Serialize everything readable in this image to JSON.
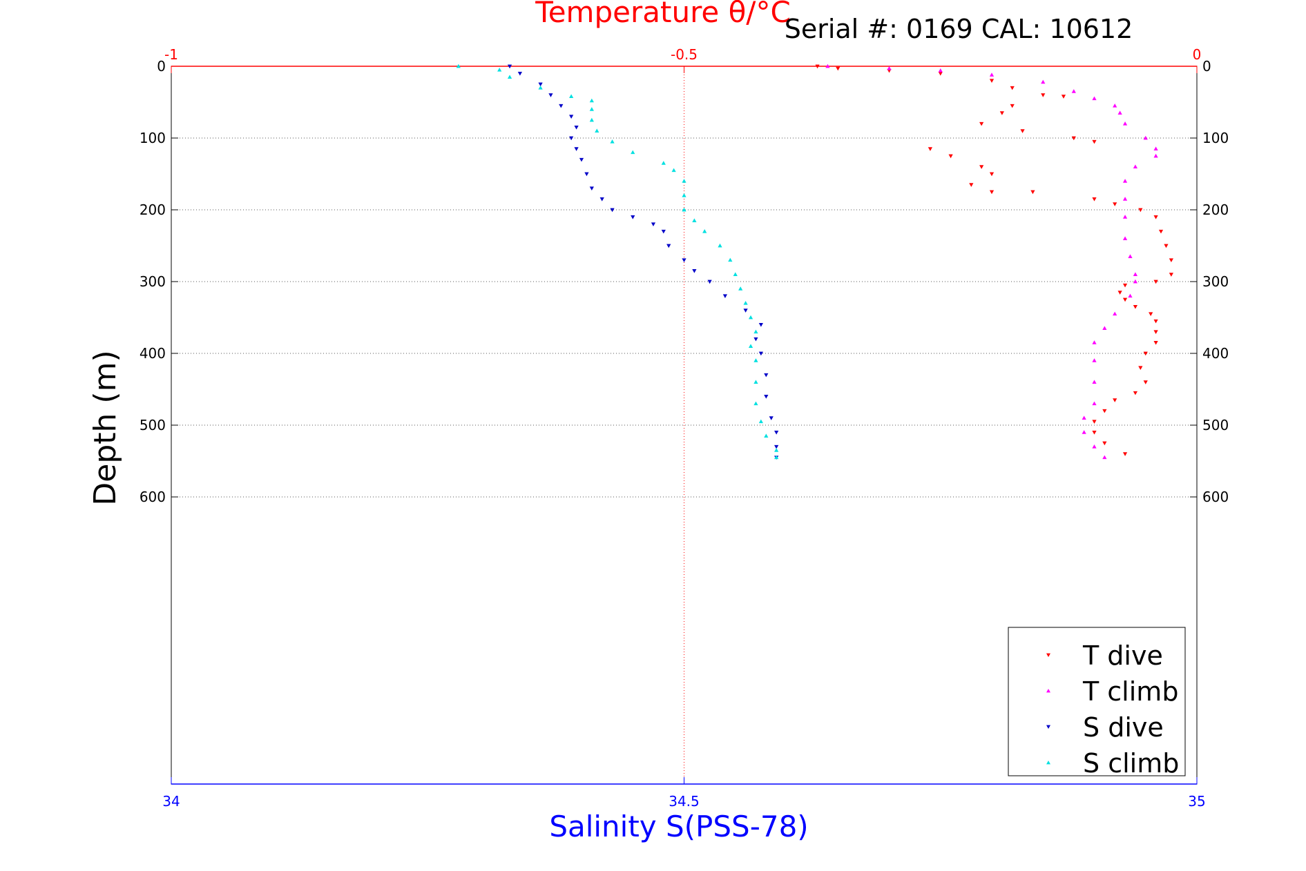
{
  "chart_data": {
    "type": "scatter",
    "title": "Temperature θ/°C",
    "subtitle": "Serial #: 0169 CAL: 10612",
    "xlabel": "Salinity S(PSS-78)",
    "ylabel": "Depth (m)",
    "x_top": {
      "label": "Temperature θ/°C",
      "range": [
        -1,
        0
      ],
      "ticks": [
        "-1",
        "-0.5",
        "0"
      ],
      "tick_values": [
        -1,
        -0.5,
        0
      ],
      "color": "#ff0000"
    },
    "x_bottom": {
      "label": "Salinity S(PSS-78)",
      "range": [
        34,
        35
      ],
      "ticks": [
        "34",
        "34.5",
        "35"
      ],
      "tick_values": [
        34,
        34.5,
        35
      ],
      "color": "#0000ff"
    },
    "y": {
      "range": [
        0,
        1000
      ],
      "reversed": true,
      "ticks": [
        "0",
        "100",
        "200",
        "300",
        "400",
        "500",
        "600"
      ],
      "tick_values": [
        0,
        100,
        200,
        300,
        400,
        500,
        600
      ]
    },
    "grid": true,
    "legend_position": "bottom-right",
    "series": [
      {
        "name": "T dive",
        "axis": "temperature",
        "color": "#ff0000",
        "marker": "triangle-down",
        "points": [
          [
            -0.37,
            0
          ],
          [
            -0.35,
            3
          ],
          [
            -0.3,
            6
          ],
          [
            -0.25,
            10
          ],
          [
            -0.2,
            20
          ],
          [
            -0.18,
            30
          ],
          [
            -0.15,
            40
          ],
          [
            -0.13,
            42
          ],
          [
            -0.18,
            55
          ],
          [
            -0.19,
            65
          ],
          [
            -0.21,
            80
          ],
          [
            -0.17,
            90
          ],
          [
            -0.12,
            100
          ],
          [
            -0.1,
            105
          ],
          [
            -0.26,
            115
          ],
          [
            -0.24,
            125
          ],
          [
            -0.21,
            140
          ],
          [
            -0.2,
            150
          ],
          [
            -0.22,
            165
          ],
          [
            -0.2,
            175
          ],
          [
            -0.16,
            175
          ],
          [
            -0.1,
            185
          ],
          [
            -0.08,
            192
          ],
          [
            -0.055,
            200
          ],
          [
            -0.04,
            210
          ],
          [
            -0.035,
            230
          ],
          [
            -0.03,
            250
          ],
          [
            -0.025,
            270
          ],
          [
            -0.025,
            290
          ],
          [
            -0.04,
            300
          ],
          [
            -0.07,
            305
          ],
          [
            -0.075,
            315
          ],
          [
            -0.07,
            325
          ],
          [
            -0.06,
            335
          ],
          [
            -0.045,
            345
          ],
          [
            -0.04,
            355
          ],
          [
            -0.04,
            370
          ],
          [
            -0.04,
            385
          ],
          [
            -0.05,
            400
          ],
          [
            -0.055,
            420
          ],
          [
            -0.05,
            440
          ],
          [
            -0.06,
            455
          ],
          [
            -0.08,
            465
          ],
          [
            -0.09,
            480
          ],
          [
            -0.1,
            495
          ],
          [
            -0.1,
            510
          ],
          [
            -0.09,
            525
          ],
          [
            -0.07,
            540
          ]
        ]
      },
      {
        "name": "T climb",
        "axis": "temperature",
        "color": "#ff00ff",
        "marker": "triangle-up",
        "points": [
          [
            -0.36,
            0
          ],
          [
            -0.3,
            3
          ],
          [
            -0.25,
            6
          ],
          [
            -0.2,
            12
          ],
          [
            -0.15,
            22
          ],
          [
            -0.12,
            35
          ],
          [
            -0.1,
            45
          ],
          [
            -0.08,
            55
          ],
          [
            -0.075,
            65
          ],
          [
            -0.07,
            80
          ],
          [
            -0.05,
            100
          ],
          [
            -0.04,
            115
          ],
          [
            -0.04,
            125
          ],
          [
            -0.06,
            140
          ],
          [
            -0.07,
            160
          ],
          [
            -0.07,
            185
          ],
          [
            -0.07,
            210
          ],
          [
            -0.07,
            240
          ],
          [
            -0.065,
            265
          ],
          [
            -0.06,
            290
          ],
          [
            -0.06,
            300
          ],
          [
            -0.065,
            320
          ],
          [
            -0.08,
            345
          ],
          [
            -0.09,
            365
          ],
          [
            -0.1,
            385
          ],
          [
            -0.1,
            410
          ],
          [
            -0.1,
            440
          ],
          [
            -0.1,
            470
          ],
          [
            -0.11,
            490
          ],
          [
            -0.11,
            510
          ],
          [
            -0.1,
            530
          ],
          [
            -0.09,
            545
          ]
        ]
      },
      {
        "name": "S dive",
        "axis": "salinity",
        "color": "#0000c8",
        "marker": "triangle-down",
        "points": [
          [
            34.33,
            0
          ],
          [
            34.34,
            10
          ],
          [
            34.36,
            25
          ],
          [
            34.37,
            40
          ],
          [
            34.38,
            55
          ],
          [
            34.39,
            70
          ],
          [
            34.395,
            85
          ],
          [
            34.39,
            100
          ],
          [
            34.395,
            115
          ],
          [
            34.4,
            130
          ],
          [
            34.405,
            150
          ],
          [
            34.41,
            170
          ],
          [
            34.42,
            185
          ],
          [
            34.43,
            200
          ],
          [
            34.45,
            210
          ],
          [
            34.47,
            220
          ],
          [
            34.48,
            230
          ],
          [
            34.485,
            250
          ],
          [
            34.5,
            270
          ],
          [
            34.51,
            285
          ],
          [
            34.525,
            300
          ],
          [
            34.54,
            320
          ],
          [
            34.56,
            340
          ],
          [
            34.575,
            360
          ],
          [
            34.57,
            380
          ],
          [
            34.575,
            400
          ],
          [
            34.58,
            430
          ],
          [
            34.58,
            460
          ],
          [
            34.585,
            490
          ],
          [
            34.59,
            510
          ],
          [
            34.59,
            530
          ],
          [
            34.59,
            545
          ]
        ]
      },
      {
        "name": "S climb",
        "axis": "salinity",
        "color": "#00e0e0",
        "marker": "triangle-up",
        "points": [
          [
            34.28,
            0
          ],
          [
            34.32,
            5
          ],
          [
            34.33,
            15
          ],
          [
            34.36,
            30
          ],
          [
            34.39,
            42
          ],
          [
            34.41,
            48
          ],
          [
            34.41,
            60
          ],
          [
            34.41,
            75
          ],
          [
            34.415,
            90
          ],
          [
            34.43,
            105
          ],
          [
            34.45,
            120
          ],
          [
            34.48,
            135
          ],
          [
            34.49,
            145
          ],
          [
            34.5,
            160
          ],
          [
            34.5,
            180
          ],
          [
            34.5,
            200
          ],
          [
            34.51,
            215
          ],
          [
            34.52,
            230
          ],
          [
            34.535,
            250
          ],
          [
            34.545,
            270
          ],
          [
            34.55,
            290
          ],
          [
            34.555,
            310
          ],
          [
            34.56,
            330
          ],
          [
            34.565,
            350
          ],
          [
            34.57,
            370
          ],
          [
            34.565,
            390
          ],
          [
            34.57,
            410
          ],
          [
            34.57,
            440
          ],
          [
            34.57,
            470
          ],
          [
            34.575,
            495
          ],
          [
            34.58,
            515
          ],
          [
            34.59,
            535
          ],
          [
            34.59,
            545
          ]
        ]
      }
    ]
  }
}
